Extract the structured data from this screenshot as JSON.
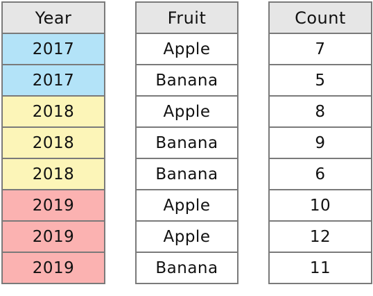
{
  "colors": {
    "header_bg": "#e6e6e6",
    "border": "#7a7a7a",
    "year_2017": "#b3e3f8",
    "year_2018": "#fcf5b8",
    "year_2019": "#fbb2b1",
    "plain": "#ffffff"
  },
  "headers": {
    "year": "Year",
    "fruit": "Fruit",
    "count": "Count"
  },
  "rows": [
    {
      "year": "2017",
      "fruit": "Apple",
      "count": "7",
      "color": "#b3e3f8"
    },
    {
      "year": "2017",
      "fruit": "Banana",
      "count": "5",
      "color": "#b3e3f8"
    },
    {
      "year": "2018",
      "fruit": "Apple",
      "count": "8",
      "color": "#fcf5b8"
    },
    {
      "year": "2018",
      "fruit": "Banana",
      "count": "9",
      "color": "#fcf5b8"
    },
    {
      "year": "2018",
      "fruit": "Banana",
      "count": "6",
      "color": "#fcf5b8"
    },
    {
      "year": "2019",
      "fruit": "Apple",
      "count": "10",
      "color": "#fbb2b1"
    },
    {
      "year": "2019",
      "fruit": "Apple",
      "count": "12",
      "color": "#fbb2b1"
    },
    {
      "year": "2019",
      "fruit": "Banana",
      "count": "11",
      "color": "#fbb2b1"
    }
  ]
}
